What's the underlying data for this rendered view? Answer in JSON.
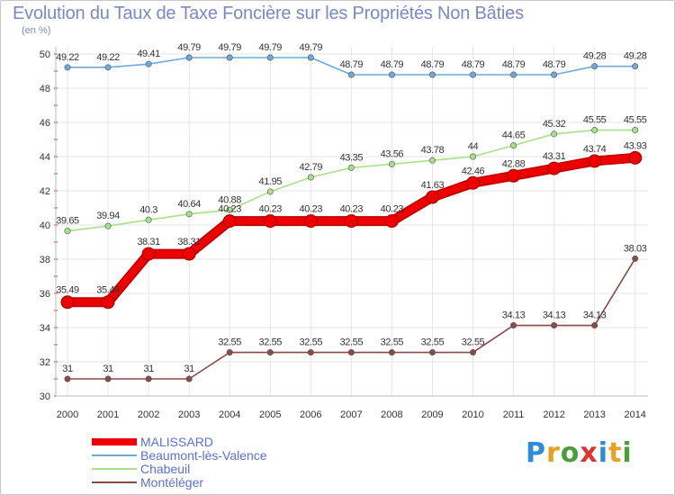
{
  "chart_data": {
    "type": "line",
    "title": "Evolution du Taux de Taxe Foncière sur les Propriétés Non Bâties",
    "subtitle": "(en %)",
    "xlabel": "",
    "ylabel": "",
    "ylim": [
      30,
      50
    ],
    "yticks": [
      30,
      32,
      34,
      36,
      38,
      40,
      42,
      44,
      46,
      48,
      50
    ],
    "grid": true,
    "categories": [
      "2000",
      "2001",
      "2002",
      "2003",
      "2004",
      "2005",
      "2006",
      "2007",
      "2008",
      "2009",
      "2010",
      "2011",
      "2012",
      "2013",
      "2014"
    ],
    "series": [
      {
        "name": "MALISSARD",
        "color": "#ee0000",
        "values": [
          35.49,
          35.49,
          38.31,
          38.31,
          40.23,
          40.23,
          40.23,
          40.23,
          40.23,
          41.63,
          42.46,
          42.88,
          43.31,
          43.74,
          43.93
        ],
        "labels": [
          "35.49",
          "35.49",
          "38.31",
          "38.31",
          "40.23",
          "40.23",
          "40.23",
          "40.23",
          "40.23",
          "41.63",
          "42.46",
          "42.88",
          "43.31",
          "43.74",
          "43.93"
        ]
      },
      {
        "name": "Beaumont-lès-Valence",
        "color": "#6fa8dc",
        "values": [
          49.22,
          49.22,
          49.41,
          49.79,
          49.79,
          49.79,
          49.79,
          48.79,
          48.79,
          48.79,
          48.79,
          48.79,
          48.79,
          49.28,
          49.28
        ],
        "labels": [
          "49.22",
          "49.22",
          "49.41",
          "49.79",
          "49.79",
          "49.79",
          "49.79",
          "48.79",
          "48.79",
          "48.79",
          "48.79",
          "48.79",
          "48.79",
          "49.28",
          "49.28"
        ]
      },
      {
        "name": "Chabeuil",
        "color": "#a8e08a",
        "values": [
          39.65,
          39.94,
          40.3,
          40.64,
          40.88,
          41.95,
          42.79,
          43.35,
          43.56,
          43.78,
          44,
          44.65,
          45.32,
          45.55,
          45.55
        ],
        "labels": [
          "39.65",
          "39.94",
          "40.3",
          "40.64",
          "40.88",
          "41.95",
          "42.79",
          "43.35",
          "43.56",
          "43.78",
          "44",
          "44.65",
          "45.32",
          "45.55",
          "45.55"
        ]
      },
      {
        "name": "Montéléger",
        "color": "#8b4a4a",
        "values": [
          31,
          31,
          31,
          31,
          32.55,
          32.55,
          32.55,
          32.55,
          32.55,
          32.55,
          32.55,
          34.13,
          34.13,
          34.13,
          38.03
        ],
        "labels": [
          "31",
          "31",
          "31",
          "31",
          "32.55",
          "32.55",
          "32.55",
          "32.55",
          "32.55",
          "32.55",
          "32.55",
          "34.13",
          "34.13",
          "34.13",
          "38.03"
        ]
      }
    ],
    "legend_position": "bottom-left"
  },
  "brand": {
    "logo_letters": [
      "P",
      "r",
      "o",
      "x",
      "i",
      "t",
      "i"
    ],
    "logo_colors": [
      "#2e8bd8",
      "#e8a020",
      "#4a9e3a",
      "#e03030",
      "#2e8bd8",
      "#e8a020",
      "#4a9e3a"
    ]
  }
}
